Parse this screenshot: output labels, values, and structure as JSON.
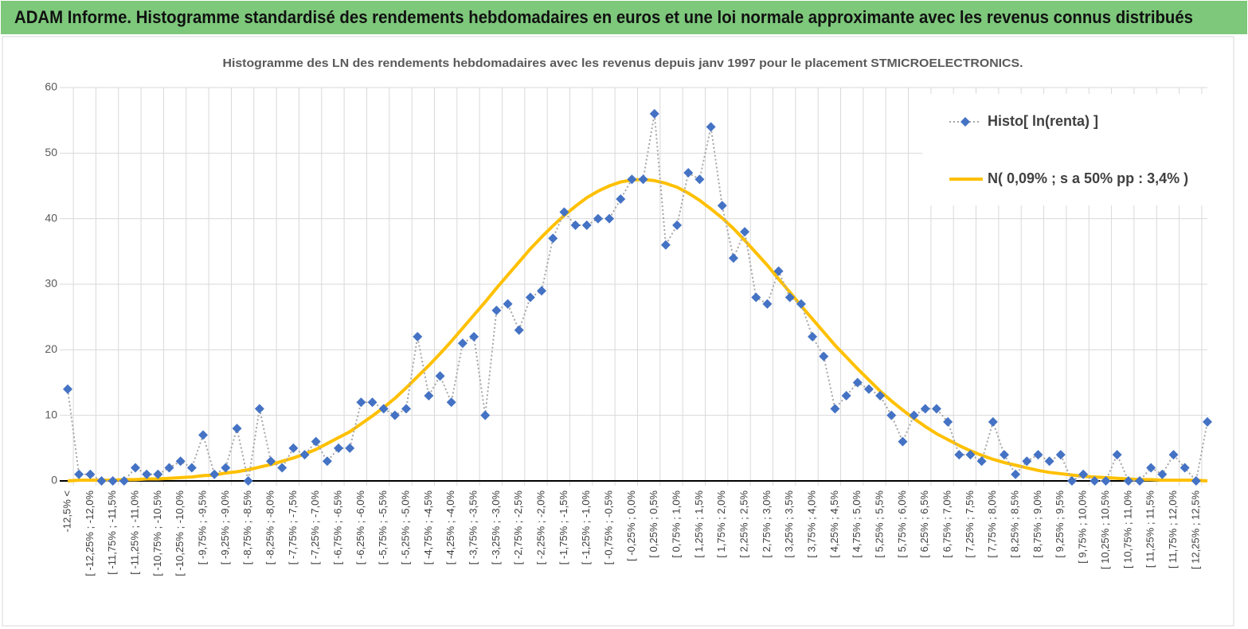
{
  "chart_data": {
    "type": "line",
    "title": "ADAM Informe. Histogramme standardisé des rendements hebdomadaires en euros et une loi normale approximante avec les revenus connus distribués",
    "subtitle": "Histogramme  des LN des rendements  hebdomadaires avec les revenus depuis janv 1997 pour le placement STMICROELECTRONICS.",
    "categories": [
      "-12,5% <",
      null,
      "[ -12,25% ; -12,0%",
      null,
      "[ -11,75% ; -11,5%",
      null,
      "[ -11,25% ; -11,0%",
      null,
      "[ -10,75% ; -10,5%",
      null,
      "[ -10,25% ; -10,0%",
      null,
      "[ -9,75% ; -9,5%",
      null,
      "[ -9,25% ; -9,0%",
      null,
      "[ -8,75% ; -8,5%",
      null,
      "[ -8,25% ; -8,0%",
      null,
      "[ -7,75% ; -7,5%",
      null,
      "[ -7,25% ; -7,0%",
      null,
      "[ -6,75% ; -6,5%",
      null,
      "[ -6,25% ; -6,0%",
      null,
      "[ -5,75% ; -5,5%",
      null,
      "[ -5,25% ; -5,0%",
      null,
      "[ -4,75% ; -4,5%",
      null,
      "[ -4,25% ; -4,0%",
      null,
      "[ -3,75% ; -3,5%",
      null,
      "[ -3,25% ; -3,0%",
      null,
      "[ -2,75% ; -2,5%",
      null,
      "[ -2,25% ; -2,0%",
      null,
      "[ -1,75% ; -1,5%",
      null,
      "[ -1,25% ; -1,0%",
      null,
      "[ -0,75% ; -0,5%",
      null,
      "[ -0,25% ; 0,0%",
      null,
      "[ 0,25% ; 0,5%",
      null,
      "[ 0,75% ; 1,0%",
      null,
      "[ 1,25% ; 1,5%",
      null,
      "[ 1,75% ; 2,0%",
      null,
      "[ 2,25% ; 2,5%",
      null,
      "[ 2,75% ; 3,0%",
      null,
      "[ 3,25% ; 3,5%",
      null,
      "[ 3,75% ; 4,0%",
      null,
      "[ 4,25% ; 4,5%",
      null,
      "[ 4,75% ; 5,0%",
      null,
      "[ 5,25% ; 5,5%",
      null,
      "[ 5,75% ; 6,0%",
      null,
      "[ 6,25% ; 6,5%",
      null,
      "[ 6,75% ; 7,0%",
      null,
      "[ 7,25% ; 7,5%",
      null,
      "[ 7,75% ; 8,0%",
      null,
      "[ 8,25% ; 8,5%",
      null,
      "[ 8,75% ; 9,0%",
      null,
      "[ 9,25% ; 9,5%",
      null,
      "[ 9,75% ; 10,0%",
      null,
      "[ 10,25% ; 10,5%",
      null,
      "[ 10,75% ; 11,0%",
      null,
      "[ 11,25% ; 11,5%",
      null,
      "[ 11,75% ; 12,0%",
      null,
      "[ 12,25% ; 12,5%",
      null
    ],
    "series": [
      {
        "name": "Histo[ ln(renta) ]",
        "color": "#4472c4",
        "line_color": "#a6a6a6",
        "marker": "diamond",
        "line_style": "dotted",
        "values": [
          14,
          1,
          1,
          0,
          0,
          0,
          2,
          1,
          1,
          2,
          3,
          2,
          7,
          1,
          2,
          8,
          0,
          11,
          3,
          2,
          5,
          4,
          6,
          3,
          5,
          5,
          12,
          12,
          11,
          10,
          11,
          22,
          13,
          16,
          12,
          21,
          22,
          10,
          26,
          27,
          23,
          28,
          29,
          37,
          41,
          39,
          39,
          40,
          40,
          43,
          46,
          46,
          56,
          36,
          39,
          47,
          46,
          54,
          42,
          34,
          38,
          28,
          27,
          32,
          28,
          27,
          22,
          19,
          11,
          13,
          15,
          14,
          13,
          10,
          6,
          10,
          11,
          11,
          9,
          4,
          4,
          3,
          9,
          4,
          1,
          3,
          4,
          3,
          4,
          0,
          1,
          0,
          0,
          4,
          0,
          0,
          2,
          1,
          4,
          2,
          0,
          9
        ]
      },
      {
        "name": "N( 0,09% ; s a 50% pp : 3,4% )",
        "color": "#ffc000",
        "marker": "none",
        "line_style": "solid",
        "values": [
          0,
          0.1,
          0.1,
          0.1,
          0.1,
          0.2,
          0.2,
          0.3,
          0.3,
          0.4,
          0.5,
          0.6,
          0.8,
          0.9,
          1.2,
          1.4,
          1.7,
          2.1,
          2.5,
          3.0,
          3.5,
          4.1,
          4.8,
          5.7,
          6.6,
          7.5,
          8.7,
          9.9,
          11.2,
          12.6,
          14.2,
          15.9,
          17.6,
          19.4,
          21.3,
          23.3,
          25.3,
          27.3,
          29.4,
          31.4,
          33.4,
          35.4,
          37.2,
          38.9,
          40.5,
          41.9,
          43.2,
          44.2,
          45.0,
          45.6,
          45.9,
          46.0,
          45.8,
          45.4,
          44.8,
          43.9,
          42.8,
          41.5,
          40.1,
          38.5,
          36.7,
          34.8,
          32.9,
          30.8,
          28.8,
          26.7,
          24.7,
          22.7,
          20.7,
          18.9,
          17.1,
          15.4,
          13.7,
          12.2,
          10.8,
          9.5,
          8.3,
          7.2,
          6.3,
          5.4,
          4.6,
          3.9,
          3.3,
          2.8,
          2.4,
          2.0,
          1.6,
          1.3,
          1.1,
          0.9,
          0.7,
          0.6,
          0.5,
          0.4,
          0.3,
          0.2,
          0.2,
          0.1,
          0.1,
          0.1,
          0.1,
          0
        ]
      }
    ],
    "ylim": [
      0,
      60
    ],
    "yticks": [
      0,
      10,
      20,
      30,
      40,
      50,
      60
    ],
    "grid": true,
    "legend": "top-right"
  }
}
